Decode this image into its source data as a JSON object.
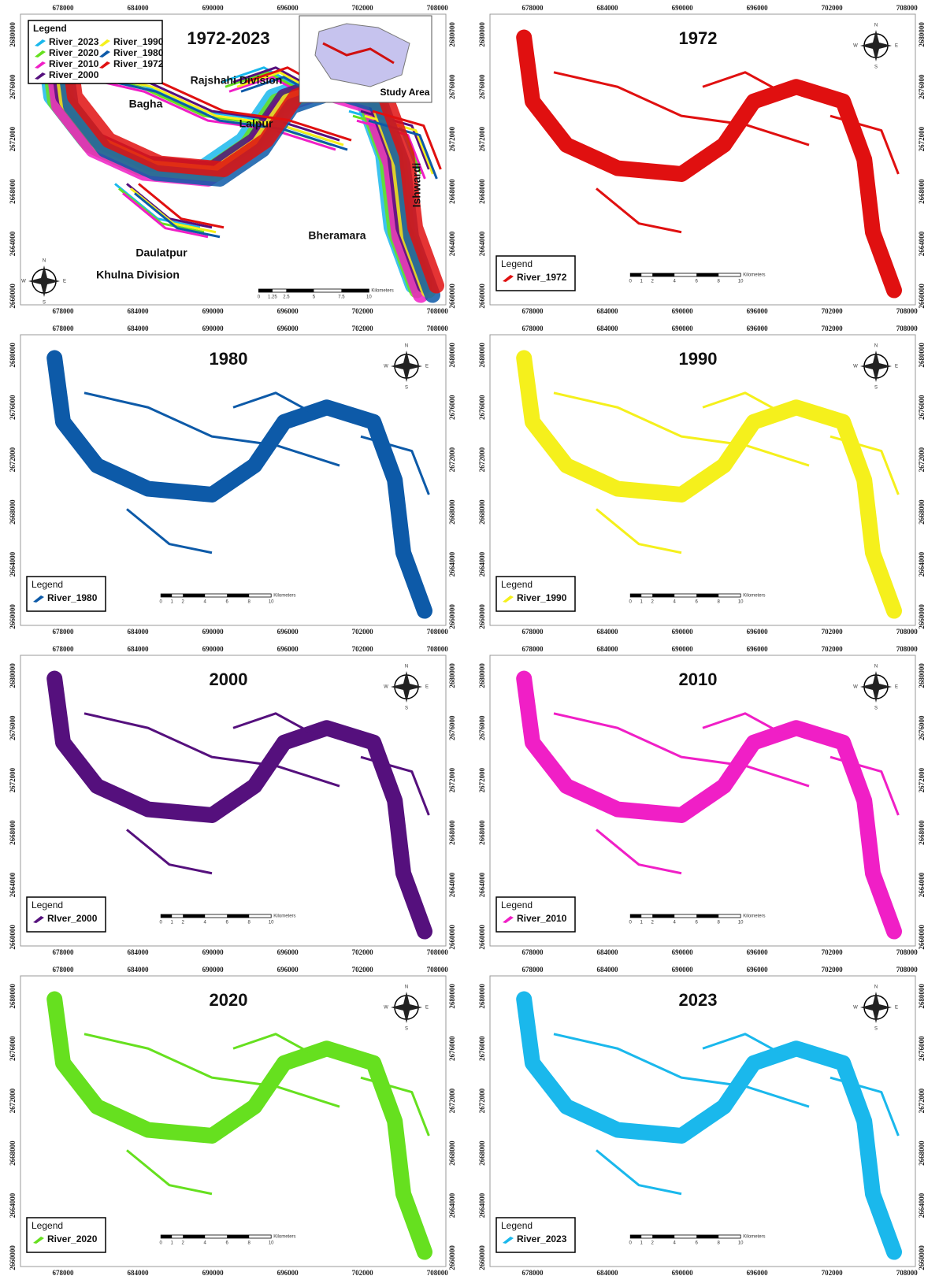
{
  "panels": [
    {
      "title": "1972-2023",
      "legend": {
        "title": "Legend",
        "entries": [
          {
            "name": "River_2023",
            "color": "#1ab8ec"
          },
          {
            "name": "River_2020",
            "color": "#66e01f"
          },
          {
            "name": "River_2010",
            "color": "#f01fc6"
          },
          {
            "name": "River_2000",
            "color": "#55107d"
          },
          {
            "name": "River_1990",
            "color": "#f5f01c"
          },
          {
            "name": "River_1980",
            "color": "#0d5aa8"
          },
          {
            "name": "River_1972",
            "color": "#e01010"
          }
        ]
      },
      "places": [
        "Rajshahi Division",
        "Bagha",
        "Lalpur",
        "Ishwardi",
        "Bheramara",
        "Daulatpur",
        "Khulna Division"
      ],
      "inset": "Study Area",
      "scale": [
        0,
        1.25,
        2.5,
        5,
        7.5,
        10
      ]
    },
    {
      "title": "1972",
      "legend": {
        "title": "Legend",
        "entries": [
          {
            "name": "River_1972",
            "color": "#e01010"
          }
        ]
      }
    },
    {
      "title": "1980",
      "legend": {
        "title": "Legend",
        "entries": [
          {
            "name": "River_1980",
            "color": "#0d5aa8"
          }
        ]
      }
    },
    {
      "title": "1990",
      "legend": {
        "title": "Legend",
        "entries": [
          {
            "name": "River_1990",
            "color": "#f5f01c"
          }
        ]
      }
    },
    {
      "title": "2000",
      "legend": {
        "title": "Legend",
        "entries": [
          {
            "name": "RIver_2000",
            "color": "#55107d"
          }
        ]
      }
    },
    {
      "title": "2010",
      "legend": {
        "title": "Legend",
        "entries": [
          {
            "name": "River_2010",
            "color": "#f01fc6"
          }
        ]
      }
    },
    {
      "title": "2020",
      "legend": {
        "title": "Legend",
        "entries": [
          {
            "name": "River_2020",
            "color": "#66e01f"
          }
        ]
      }
    },
    {
      "title": "2023",
      "legend": {
        "title": "Legend",
        "entries": [
          {
            "name": "River_2023",
            "color": "#1ab8ec"
          }
        ]
      }
    }
  ],
  "scale": [
    0,
    1,
    2,
    4,
    6,
    8,
    10
  ],
  "scale_unit": "Kilometers",
  "compass": [
    "N",
    "S",
    "E",
    "W"
  ],
  "xticks": [
    678000,
    684000,
    690000,
    696000,
    702000,
    708000
  ],
  "yticks": [
    2660000,
    2664000,
    2668000,
    2672000,
    2676000,
    2680000
  ]
}
